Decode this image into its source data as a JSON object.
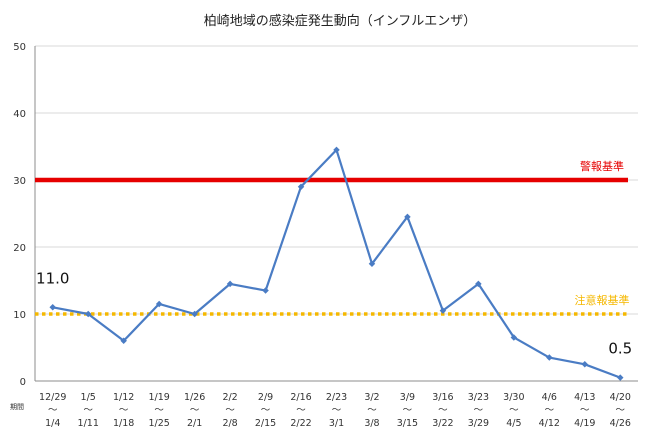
{
  "chart_data": {
    "type": "line",
    "title": "柏崎地域の感染症発生動向（インフルエンザ）",
    "ylim": [
      0,
      50
    ],
    "yticks": [
      0,
      10,
      20,
      30,
      40,
      50
    ],
    "grid": true,
    "period_label": "期間",
    "categories": [
      {
        "top": "12/29",
        "mid": "～",
        "bottom": "1/4"
      },
      {
        "top": "1/5",
        "mid": "～",
        "bottom": "1/11"
      },
      {
        "top": "1/12",
        "mid": "～",
        "bottom": "1/18"
      },
      {
        "top": "1/19",
        "mid": "～",
        "bottom": "1/25"
      },
      {
        "top": "1/26",
        "mid": "～",
        "bottom": "2/1"
      },
      {
        "top": "2/2",
        "mid": "～",
        "bottom": "2/8"
      },
      {
        "top": "2/9",
        "mid": "～",
        "bottom": "2/15"
      },
      {
        "top": "2/16",
        "mid": "～",
        "bottom": "2/22"
      },
      {
        "top": "2/23",
        "mid": "～",
        "bottom": "3/1"
      },
      {
        "top": "3/2",
        "mid": "～",
        "bottom": "3/8"
      },
      {
        "top": "3/9",
        "mid": "～",
        "bottom": "3/15"
      },
      {
        "top": "3/16",
        "mid": "～",
        "bottom": "3/22"
      },
      {
        "top": "3/23",
        "mid": "～",
        "bottom": "3/29"
      },
      {
        "top": "3/30",
        "mid": "～",
        "bottom": "4/5"
      },
      {
        "top": "4/6",
        "mid": "～",
        "bottom": "4/12"
      },
      {
        "top": "4/13",
        "mid": "～",
        "bottom": "4/19"
      },
      {
        "top": "4/20",
        "mid": "～",
        "bottom": "4/26"
      }
    ],
    "values": [
      11.0,
      10.0,
      6.0,
      11.5,
      10.0,
      14.5,
      13.5,
      29.0,
      34.5,
      17.5,
      24.5,
      10.5,
      14.5,
      6.5,
      3.5,
      2.5,
      0.5
    ],
    "series_color": "#4a7cc4",
    "annotations": [
      {
        "index": 0,
        "text": "11.0"
      },
      {
        "index": 16,
        "text": "0.5"
      }
    ],
    "reference_lines": [
      {
        "value": 30,
        "label": "警報基準",
        "color": "#e60000",
        "style": "solid"
      },
      {
        "value": 10,
        "label": "注意報基準",
        "color": "#f5b800",
        "style": "dotted"
      }
    ]
  }
}
